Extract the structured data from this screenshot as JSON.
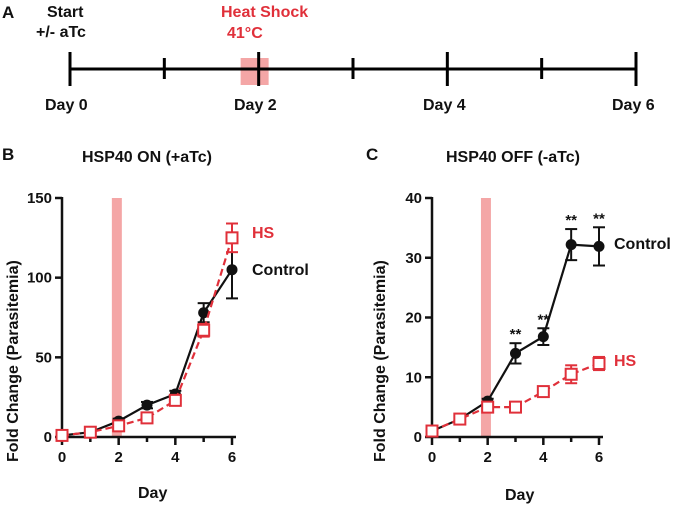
{
  "panels": {
    "a": "A",
    "b": "B",
    "c": "C"
  },
  "timeline": {
    "start_label_line1": "Start",
    "start_label_line2": "+/- aTc",
    "heat_label_line1": "Heat Shock",
    "heat_label_line2": "41°C",
    "day_labels": [
      "Day 0",
      "Day 2",
      "Day 4",
      "Day 6"
    ],
    "days": [
      0,
      6
    ],
    "heat_shock_day": 1.83,
    "colors": {
      "line": "#000000",
      "heat": "#f4a6a6",
      "heat_text": "#e0303a"
    }
  },
  "chart_data": [
    {
      "type": "line",
      "title": "HSP40 ON (+aTc)",
      "xlabel": "Day",
      "ylabel": "Fold Change (Parasitemia)",
      "xlim": [
        0,
        6
      ],
      "ylim": [
        0,
        150
      ],
      "xticks": [
        0,
        2,
        4,
        6
      ],
      "yticks": [
        0,
        50,
        100,
        150
      ],
      "heat_shock_day": 1.83,
      "series": [
        {
          "name": "Control",
          "marker": "circle",
          "color": "#111111",
          "dash": "solid",
          "x": [
            0,
            1,
            2,
            3,
            4,
            5,
            6
          ],
          "values": [
            1,
            3,
            10,
            20,
            27,
            78,
            105
          ],
          "errors": [
            0.5,
            1,
            1.5,
            2,
            2,
            6,
            18
          ]
        },
        {
          "name": "HS",
          "marker": "square",
          "color": "#e0303a",
          "dash": "dashed",
          "x": [
            0,
            1,
            2,
            3,
            4,
            5,
            6
          ],
          "values": [
            1,
            3,
            7,
            12,
            23,
            67,
            125
          ],
          "errors": [
            0.5,
            1,
            1,
            1.5,
            2,
            4,
            9
          ]
        }
      ],
      "annotations": []
    },
    {
      "type": "line",
      "title": "HSP40 OFF (-aTc)",
      "xlabel": "Day",
      "ylabel": "Fold Change (Parasitemia)",
      "xlim": [
        0,
        6
      ],
      "ylim": [
        0,
        40
      ],
      "xticks": [
        0,
        2,
        4,
        6
      ],
      "yticks": [
        0,
        10,
        20,
        30,
        40
      ],
      "heat_shock_day": 1.83,
      "series": [
        {
          "name": "Control",
          "marker": "circle",
          "color": "#111111",
          "dash": "solid",
          "x": [
            0,
            1,
            2,
            3,
            4,
            5,
            6
          ],
          "values": [
            1,
            3,
            6,
            14,
            16.8,
            32.2,
            31.9
          ],
          "errors": [
            0.2,
            0.3,
            0.4,
            1.7,
            1.4,
            2.6,
            3.2
          ]
        },
        {
          "name": "HS",
          "marker": "square",
          "color": "#e0303a",
          "dash": "dashed",
          "x": [
            0,
            1,
            2,
            3,
            4,
            5,
            6
          ],
          "values": [
            1,
            3,
            5,
            5,
            7.6,
            10.5,
            12.3
          ],
          "errors": [
            0.2,
            0.3,
            0.3,
            0.3,
            0.5,
            1.5,
            1.1
          ]
        }
      ],
      "annotations": [
        {
          "x": 3,
          "text": "**",
          "ref_value": 15.7
        },
        {
          "x": 4,
          "text": "**",
          "ref_value": 18.2
        },
        {
          "x": 5,
          "text": "**",
          "ref_value": 34.8
        },
        {
          "x": 6,
          "text": "**",
          "ref_value": 35.1
        }
      ]
    }
  ]
}
